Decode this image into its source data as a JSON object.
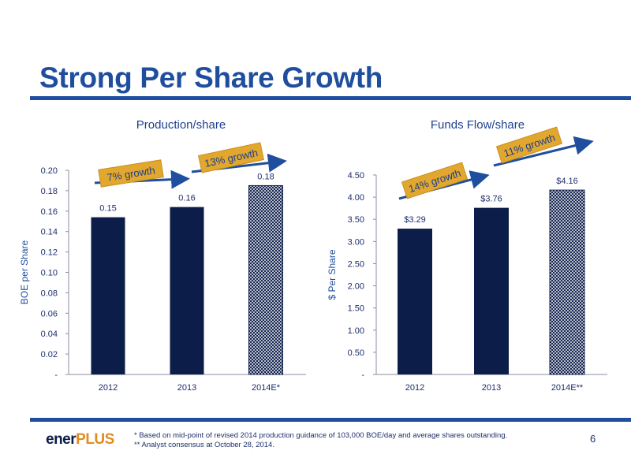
{
  "slide": {
    "title": "Strong Per Share Growth",
    "page_number": "6",
    "logo": {
      "part1": "ener",
      "part2": "PLUS"
    },
    "footnotes": [
      "* Based on mid-point of revised 2014 production guidance of 103,000 BOE/day and average shares outstanding.",
      "** Analyst consensus at  October 28, 2014."
    ],
    "colors": {
      "title": "#1f4e9e",
      "bar": "#0c1d4a",
      "arrow": "#1f4e9e",
      "banner": "#e2a72e",
      "growth_text": "#1d3f8f",
      "tick": "#1d2e6b",
      "ylabel": "#1f4e9e",
      "logo_accent": "#e38b1e"
    }
  },
  "chart_data": [
    {
      "type": "bar",
      "title": "Production/share",
      "ylabel": "BOE per  Share",
      "xlabel": "",
      "categories": [
        "2012",
        "2013",
        "2014E*"
      ],
      "values": [
        0.154,
        0.164,
        0.185
      ],
      "data_labels": [
        "0.15",
        "0.16",
        "0.18"
      ],
      "estimate_flags": [
        false,
        false,
        true
      ],
      "ylim": [
        0,
        0.2
      ],
      "yticks": [
        0,
        0.02,
        0.04,
        0.06,
        0.08,
        0.1,
        0.12,
        0.14,
        0.16,
        0.18,
        0.2
      ],
      "ytick_labels": [
        "-",
        "0.02",
        "0.04",
        "0.06",
        "0.08",
        "0.10",
        "0.12",
        "0.14",
        "0.16",
        "0.18",
        "0.20"
      ],
      "grid": false,
      "annotations": [
        "7% growth",
        "13% growth"
      ]
    },
    {
      "type": "bar",
      "title": "Funds Flow/share",
      "ylabel": "$ Per Share",
      "xlabel": "",
      "categories": [
        "2012",
        "2013",
        "2014E**"
      ],
      "values": [
        3.29,
        3.76,
        4.16
      ],
      "data_labels": [
        "$3.29",
        "$3.76",
        "$4.16"
      ],
      "estimate_flags": [
        false,
        false,
        true
      ],
      "ylim": [
        0,
        4.5
      ],
      "yticks": [
        0,
        0.5,
        1.0,
        1.5,
        2.0,
        2.5,
        3.0,
        3.5,
        4.0,
        4.5
      ],
      "ytick_labels": [
        "-",
        "0.50",
        "1.00",
        "1.50",
        "2.00",
        "2.50",
        "3.00",
        "3.50",
        "4.00",
        "4.50"
      ],
      "grid": false,
      "annotations": [
        "14% growth",
        "11% growth"
      ]
    }
  ]
}
